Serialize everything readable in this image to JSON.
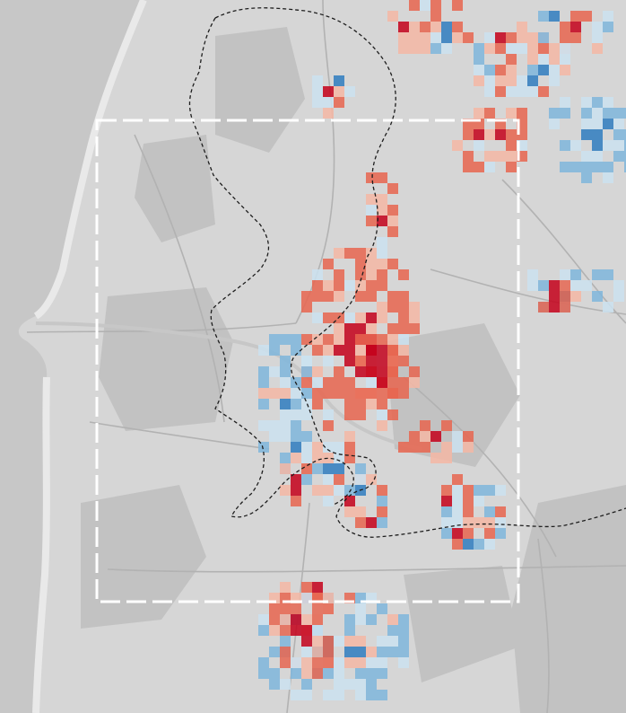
{
  "map": {
    "colors": {
      "sea": "#c7c7c7",
      "land": "#d6d6d6",
      "urban": "#c2c2c2",
      "roads": "#b2b2b2",
      "beach": "#e9e9e9",
      "frame": "#ffffff",
      "boundary": "#1e1e1e",
      "increase_high": "#c4001a",
      "increase_mid": "#e7654f",
      "increase_low": "#f4b7a5",
      "decrease_low": "#cbe2f0",
      "decrease_mid": "#7fb6dc",
      "decrease_high": "#2f7dbf"
    },
    "legend": []
  }
}
